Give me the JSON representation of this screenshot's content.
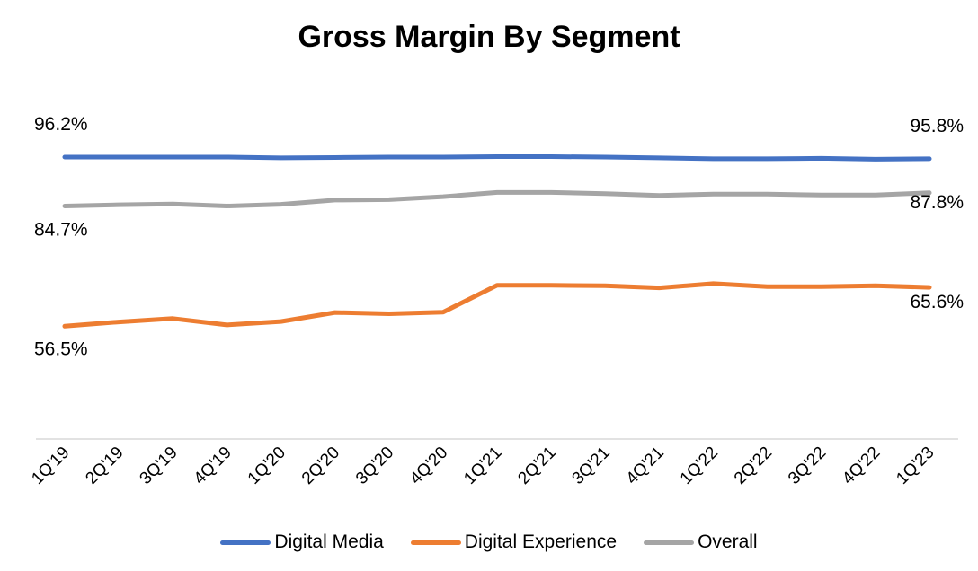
{
  "chart_data": {
    "type": "line",
    "title": "Gross Margin By Segment",
    "categories": [
      "1Q'19",
      "2Q'19",
      "3Q'19",
      "4Q'19",
      "1Q'20",
      "2Q'20",
      "3Q'20",
      "4Q'20",
      "1Q'21",
      "2Q'21",
      "3Q'21",
      "4Q'21",
      "1Q'22",
      "2Q'22",
      "3Q'22",
      "4Q'22",
      "1Q'23"
    ],
    "ylim": [
      30,
      100
    ],
    "grid": false,
    "legend_position": "bottom",
    "series": [
      {
        "name": "Digital Media",
        "color": "#4472C4",
        "values": [
          96.2,
          96.2,
          96.2,
          96.2,
          96.0,
          96.1,
          96.2,
          96.2,
          96.3,
          96.3,
          96.2,
          96.0,
          95.8,
          95.8,
          95.9,
          95.7,
          95.8
        ],
        "start_label": "96.2%",
        "end_label": "95.8%"
      },
      {
        "name": "Digital Experience",
        "color": "#ED7D31",
        "values": [
          56.5,
          57.5,
          58.3,
          56.8,
          57.6,
          59.7,
          59.4,
          59.8,
          66.1,
          66.1,
          66.0,
          65.5,
          66.5,
          65.8,
          65.8,
          66.0,
          65.6
        ],
        "start_label": "56.5%",
        "end_label": "65.6%"
      },
      {
        "name": "Overall",
        "color": "#A5A5A5",
        "values": [
          84.7,
          85.0,
          85.2,
          84.7,
          85.1,
          86.1,
          86.2,
          86.9,
          87.9,
          87.9,
          87.6,
          87.2,
          87.5,
          87.5,
          87.3,
          87.3,
          87.8
        ],
        "start_label": "84.7%",
        "end_label": "87.8%"
      }
    ]
  }
}
